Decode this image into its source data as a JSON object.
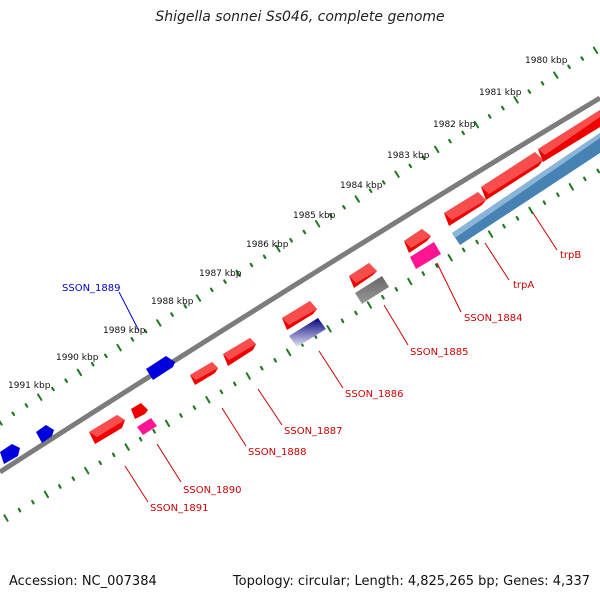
{
  "title": "Shigella sonnei Ss046, complete genome",
  "footer": {
    "accession": "Accession: NC_007384",
    "summary": "Topology: circular; Length: 4,825,265 bp; Genes: 4,337"
  },
  "colors": {
    "backbone": "#8a8a8a",
    "tick": "#1f7a1f",
    "label_red": "#cc0000",
    "label_blue": "#0000cc"
  },
  "ticks": [
    {
      "label": "1980 kbp"
    },
    {
      "label": "1981 kbp"
    },
    {
      "label": "1982 kbp"
    },
    {
      "label": "1983 kbp"
    },
    {
      "label": "1984 kbp"
    },
    {
      "label": "1985 kbp"
    },
    {
      "label": "1986 kbp"
    },
    {
      "label": "1987 kbp"
    },
    {
      "label": "1988 kbp"
    },
    {
      "label": "1989 kbp"
    },
    {
      "label": "1990 kbp"
    },
    {
      "label": "1991 kbp"
    }
  ],
  "gene_labels": [
    {
      "text": "trpB",
      "color": "red"
    },
    {
      "text": "trpA",
      "color": "red"
    },
    {
      "text": "SSON_1884",
      "color": "red"
    },
    {
      "text": "SSON_1885",
      "color": "red"
    },
    {
      "text": "SSON_1886",
      "color": "red"
    },
    {
      "text": "SSON_1887",
      "color": "red"
    },
    {
      "text": "SSON_1888",
      "color": "red"
    },
    {
      "text": "SSON_1889",
      "color": "blue"
    },
    {
      "text": "SSON_1890",
      "color": "red"
    },
    {
      "text": "SSON_1891",
      "color": "red"
    }
  ]
}
